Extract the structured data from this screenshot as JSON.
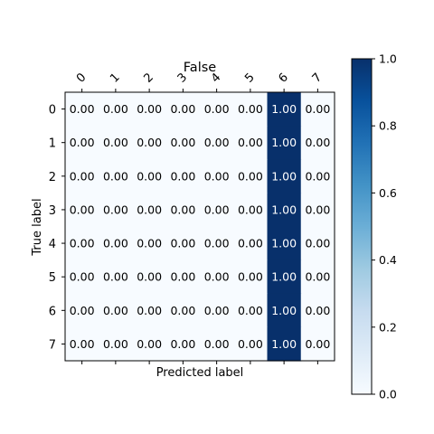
{
  "chart_data": {
    "type": "heatmap",
    "title": "False",
    "xlabel": "Predicted label",
    "ylabel": "True label",
    "x_categories": [
      "0",
      "1",
      "2",
      "3",
      "4",
      "5",
      "6",
      "7"
    ],
    "y_categories": [
      "0",
      "1",
      "2",
      "3",
      "4",
      "5",
      "6",
      "7"
    ],
    "values": [
      [
        0,
        0,
        0,
        0,
        0,
        0,
        1,
        0
      ],
      [
        0,
        0,
        0,
        0,
        0,
        0,
        1,
        0
      ],
      [
        0,
        0,
        0,
        0,
        0,
        0,
        1,
        0
      ],
      [
        0,
        0,
        0,
        0,
        0,
        0,
        1,
        0
      ],
      [
        0,
        0,
        0,
        0,
        0,
        0,
        1,
        0
      ],
      [
        0,
        0,
        0,
        0,
        0,
        0,
        1,
        0
      ],
      [
        0,
        0,
        0,
        0,
        0,
        0,
        1,
        0
      ],
      [
        0,
        0,
        0,
        0,
        0,
        0,
        1,
        0
      ]
    ],
    "value_format": "0.00",
    "colormap": "Blues",
    "colorbar": {
      "range": [
        0.0,
        1.0
      ],
      "ticks": [
        "0.0",
        "0.2",
        "0.4",
        "0.6",
        "0.8",
        "1.0"
      ]
    },
    "colors": {
      "low": "#f7fbff",
      "high": "#08306b",
      "text_dark": "#000000",
      "text_light": "#ffffff"
    }
  }
}
